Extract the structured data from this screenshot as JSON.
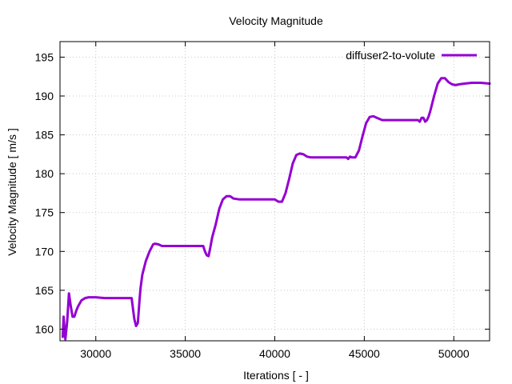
{
  "chart_data": {
    "type": "line",
    "title": "Velocity Magnitude",
    "xlabel": "Iterations [ - ]",
    "ylabel": "Velocity Magnitude [ m/s ]",
    "xlim": [
      28000,
      52000
    ],
    "ylim": [
      158.5,
      197
    ],
    "xticks": [
      30000,
      35000,
      40000,
      45000,
      50000
    ],
    "yticks": [
      160,
      165,
      170,
      175,
      180,
      185,
      190,
      195
    ],
    "xtick_labels": [
      "30000",
      "35000",
      "40000",
      "45000",
      "50000"
    ],
    "ytick_labels": [
      "160",
      "165",
      "170",
      "175",
      "180",
      "185",
      "190",
      "195"
    ],
    "grid": true,
    "legend_position": "top-right",
    "series": [
      {
        "name": "diffuser2-to-volute",
        "color": "#9400d3",
        "x": [
          28150,
          28200,
          28300,
          28400,
          28500,
          28600,
          28700,
          28800,
          28900,
          29000,
          29200,
          29400,
          29600,
          29800,
          30000,
          30500,
          31000,
          31500,
          32000,
          32150,
          32250,
          32350,
          32450,
          32500,
          32600,
          32800,
          33000,
          33200,
          33300,
          33500,
          33700,
          34000,
          34500,
          35000,
          35500,
          36000,
          36100,
          36200,
          36300,
          36400,
          36500,
          36700,
          36900,
          37100,
          37300,
          37500,
          37700,
          38000,
          38500,
          39000,
          39500,
          40000,
          40200,
          40400,
          40600,
          40800,
          41000,
          41200,
          41400,
          41600,
          41800,
          42000,
          42500,
          43000,
          43500,
          44000,
          44100,
          44200,
          44300,
          44500,
          44700,
          44900,
          45100,
          45300,
          45500,
          45700,
          46000,
          46500,
          47000,
          47500,
          48000,
          48100,
          48200,
          48300,
          48400,
          48500,
          48600,
          48700,
          48900,
          49100,
          49300,
          49500,
          49700,
          49900,
          50100,
          50300,
          50600,
          51000,
          51500,
          52000
        ],
        "y": [
          159.0,
          161.6,
          158.7,
          161.0,
          164.6,
          163.0,
          161.6,
          161.6,
          162.3,
          162.9,
          163.7,
          164.0,
          164.1,
          164.1,
          164.1,
          164.0,
          164.0,
          164.0,
          164.0,
          161.3,
          160.4,
          160.8,
          164.0,
          165.3,
          167.0,
          168.8,
          170.0,
          170.9,
          171.0,
          170.9,
          170.7,
          170.7,
          170.7,
          170.7,
          170.7,
          170.7,
          170.0,
          169.5,
          169.4,
          170.5,
          171.8,
          173.5,
          175.5,
          176.7,
          177.1,
          177.1,
          176.8,
          176.7,
          176.7,
          176.7,
          176.7,
          176.7,
          176.4,
          176.4,
          177.5,
          179.3,
          181.3,
          182.4,
          182.6,
          182.5,
          182.2,
          182.1,
          182.1,
          182.1,
          182.1,
          182.1,
          181.9,
          182.2,
          182.1,
          182.1,
          183.0,
          184.8,
          186.5,
          187.3,
          187.4,
          187.2,
          186.9,
          186.9,
          186.9,
          186.9,
          186.9,
          186.7,
          187.2,
          187.2,
          186.7,
          186.9,
          187.4,
          188.2,
          190.0,
          191.6,
          192.3,
          192.3,
          191.8,
          191.5,
          191.4,
          191.5,
          191.6,
          191.7,
          191.7,
          191.6
        ]
      }
    ]
  }
}
